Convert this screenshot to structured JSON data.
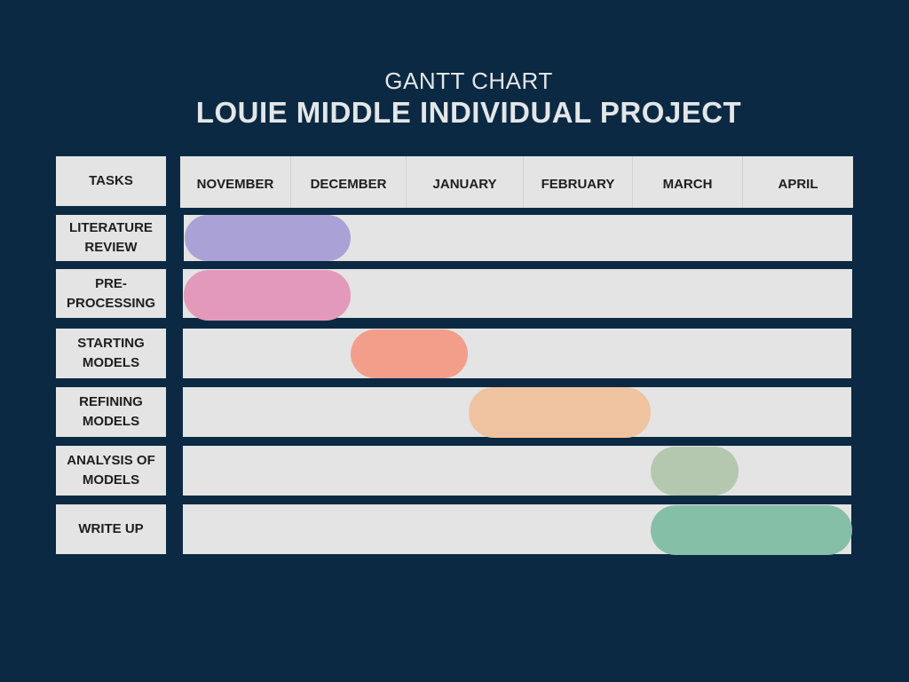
{
  "header": {
    "supertitle": "GANTT CHART",
    "title": "LOUIE MIDDLE INDIVIDUAL PROJECT"
  },
  "chart_data": {
    "type": "gantt",
    "title": "LOUIE MIDDLE INDIVIDUAL PROJECT",
    "task_column_label": "TASKS",
    "months": [
      "NOVEMBER",
      "DECEMBER",
      "JANUARY",
      "FEBRUARY",
      "MARCH",
      "APRIL"
    ],
    "tasks": [
      {
        "label": "LITERATURE\nREVIEW",
        "start": "NOVEMBER",
        "end": "DECEMBER",
        "color": "#aaa2d6"
      },
      {
        "label": "PRE-\nPROCESSING",
        "start": "NOVEMBER",
        "end": "DECEMBER",
        "color": "#e39aba"
      },
      {
        "label": "STARTING\nMODELS",
        "start": "JANUARY",
        "end": "JANUARY",
        "color": "#f29e8a"
      },
      {
        "label": "REFINING\nMODELS",
        "start": "FEBRUARY",
        "end": "MARCH",
        "color": "#f0c3a0"
      },
      {
        "label": "ANALYSIS OF\nMODELS",
        "start": "MARCH",
        "end": "MARCH",
        "color": "#b4c8b0"
      },
      {
        "label": "WRITE UP",
        "start": "MARCH",
        "end": "APRIL",
        "color": "#86bfa8"
      }
    ]
  }
}
